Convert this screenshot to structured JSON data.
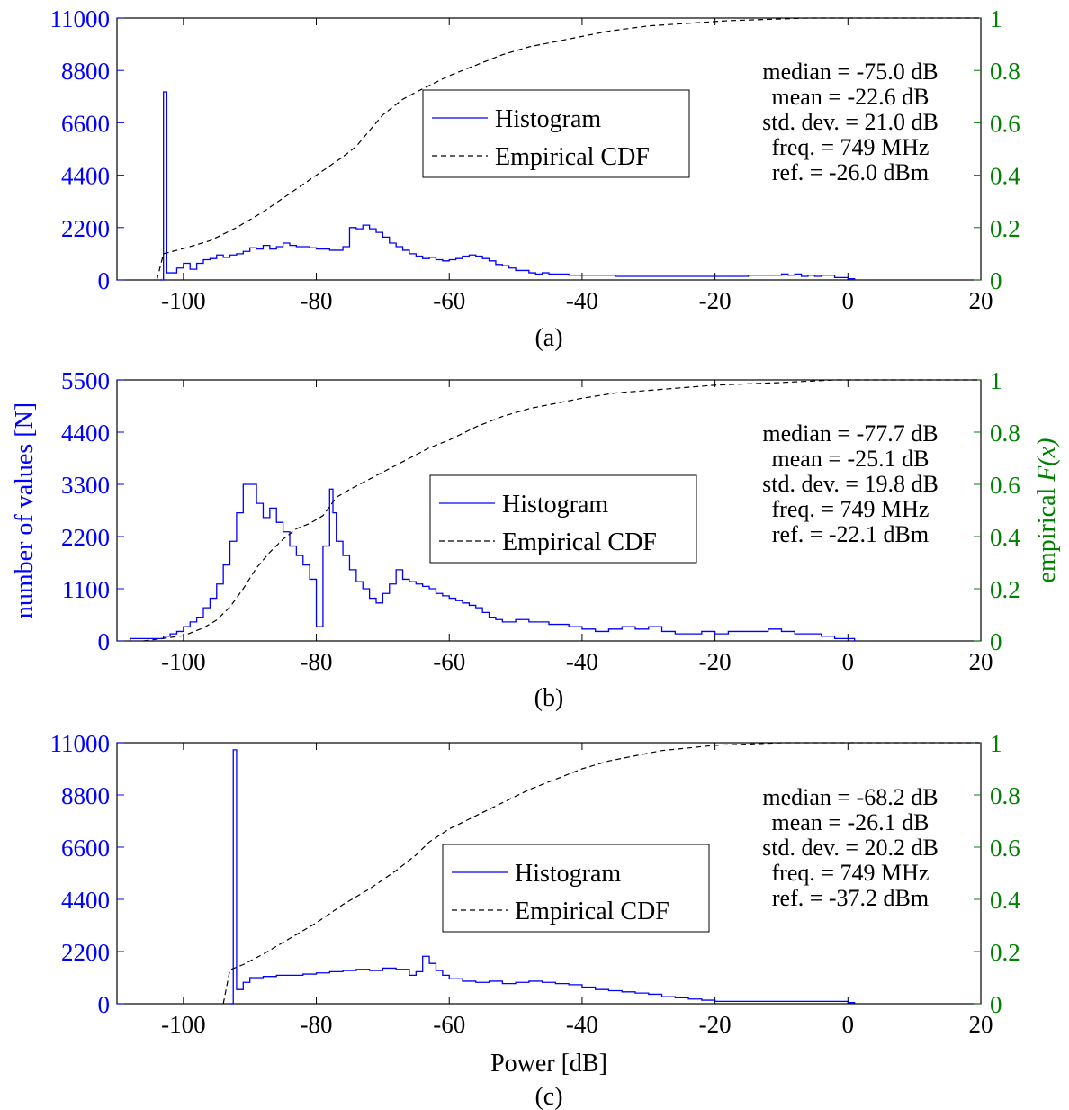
{
  "colors": {
    "histogram": "#0000ff",
    "cdf": "#000000",
    "left_axis": "#0000ff",
    "right_axis": "#008000"
  },
  "legend": {
    "histogram": "Histogram",
    "cdf": "Empirical CDF"
  },
  "left_axis_label": "number of values [N]",
  "right_axis_label": {
    "prefix": "empirical ",
    "italic": "F(x)"
  },
  "x_axis_label": "Power [dB]",
  "chart_data": [
    {
      "type": "line",
      "panel_label": "(a)",
      "xlim": [
        -110,
        20
      ],
      "ylim_left": [
        0,
        11000
      ],
      "ylim_right": [
        0,
        1
      ],
      "x_ticks": [
        -100,
        -80,
        -60,
        -40,
        -20,
        0,
        20
      ],
      "y_ticks_left": [
        0,
        2200,
        4400,
        6600,
        8800,
        11000
      ],
      "y_ticks_right": [
        0,
        0.2,
        0.4,
        0.6,
        0.8,
        1
      ],
      "stats": [
        "median = -75.0 dB",
        "mean = -22.6 dB",
        "std. dev. = 21.0 dB",
        "freq. = 749 MHz",
        "ref. = -26.0 dBm"
      ],
      "series": [
        {
          "name": "Histogram",
          "axis": "left",
          "step": true,
          "x": [
            -103.5,
            -103,
            -102.5,
            -101,
            -100,
            -99,
            -98,
            -97,
            -96,
            -95,
            -94,
            -93,
            -92,
            -91,
            -90,
            -89,
            -88,
            -87,
            -86,
            -85,
            -84,
            -83,
            -82,
            -81,
            -80,
            -79,
            -78,
            -77,
            -76,
            -75,
            -74,
            -73,
            -72,
            -71,
            -70,
            -69,
            -68,
            -67,
            -66,
            -65,
            -64,
            -63,
            -62,
            -61,
            -60,
            -59,
            -58,
            -57,
            -56,
            -55,
            -54,
            -53,
            -52,
            -51,
            -50,
            -49,
            -48,
            -47,
            -46,
            -45,
            -44,
            -42,
            -40,
            -35,
            -30,
            -25,
            -20,
            -15,
            -10,
            -9,
            -8,
            -7,
            -6,
            -5,
            -4,
            -2,
            0,
            1
          ],
          "y": [
            0,
            7900,
            300,
            500,
            700,
            450,
            700,
            850,
            900,
            1050,
            950,
            1050,
            1100,
            1200,
            1350,
            1300,
            1450,
            1300,
            1400,
            1550,
            1450,
            1400,
            1400,
            1350,
            1300,
            1300,
            1250,
            1250,
            1400,
            2200,
            2150,
            2300,
            2150,
            2000,
            1800,
            1550,
            1400,
            1250,
            1100,
            1000,
            900,
            950,
            850,
            800,
            850,
            900,
            1000,
            1050,
            1000,
            900,
            800,
            650,
            600,
            500,
            400,
            400,
            300,
            250,
            300,
            250,
            250,
            200,
            200,
            150,
            150,
            150,
            150,
            200,
            250,
            200,
            250,
            150,
            200,
            150,
            200,
            100,
            50,
            0
          ]
        },
        {
          "name": "Empirical CDF",
          "axis": "right",
          "dashed": true,
          "x": [
            -104,
            -103,
            -100,
            -96,
            -92,
            -88,
            -84,
            -80,
            -76,
            -74,
            -72,
            -70,
            -67,
            -64,
            -60,
            -56,
            -52,
            -48,
            -44,
            -40,
            -36,
            -30,
            -24,
            -18,
            -12,
            -6,
            0,
            20
          ],
          "y": [
            0,
            0.1,
            0.12,
            0.15,
            0.2,
            0.26,
            0.33,
            0.4,
            0.47,
            0.51,
            0.57,
            0.63,
            0.69,
            0.73,
            0.78,
            0.82,
            0.86,
            0.89,
            0.91,
            0.93,
            0.95,
            0.97,
            0.98,
            0.99,
            0.995,
            1.0,
            1.0,
            1.0
          ]
        }
      ]
    },
    {
      "type": "line",
      "panel_label": "(b)",
      "xlim": [
        -110,
        20
      ],
      "ylim_left": [
        0,
        5500
      ],
      "ylim_right": [
        0,
        1
      ],
      "x_ticks": [
        -100,
        -80,
        -60,
        -40,
        -20,
        0,
        20
      ],
      "y_ticks_left": [
        0,
        1100,
        2200,
        3300,
        4400,
        5500
      ],
      "y_ticks_right": [
        0,
        0.2,
        0.4,
        0.6,
        0.8,
        1
      ],
      "stats": [
        "median = -77.7 dB",
        "mean = -25.1 dB",
        "std. dev. = 19.8 dB",
        "freq. = 749 MHz",
        "ref. = -22.1 dBm"
      ],
      "series": [
        {
          "name": "Histogram",
          "axis": "left",
          "step": true,
          "x": [
            -108,
            -103,
            -102,
            -101,
            -100,
            -99,
            -98,
            -97,
            -96,
            -95,
            -94,
            -93,
            -92,
            -91,
            -89,
            -88,
            -87,
            -86,
            -85,
            -84,
            -83,
            -82,
            -81,
            -80,
            -79,
            -78,
            -77.5,
            -77,
            -76,
            -75,
            -74,
            -73,
            -72,
            -71,
            -70,
            -69,
            -68,
            -67,
            -66,
            -65,
            -64,
            -63,
            -62,
            -61,
            -60,
            -59,
            -58,
            -57,
            -56,
            -55,
            -54,
            -53,
            -52,
            -50,
            -48,
            -45,
            -42,
            -40,
            -38,
            -36,
            -34,
            -32,
            -30,
            -28,
            -26,
            -24,
            -22,
            -20,
            -18,
            -16,
            -14,
            -12,
            -10,
            -8,
            -6,
            -4,
            -2,
            1
          ],
          "y": [
            50,
            100,
            150,
            200,
            300,
            400,
            500,
            700,
            900,
            1200,
            1600,
            2100,
            2700,
            3300,
            2900,
            2600,
            2800,
            2500,
            2300,
            2000,
            1800,
            1600,
            1300,
            300,
            2000,
            3200,
            2700,
            2100,
            1800,
            1500,
            1250,
            1100,
            900,
            800,
            1000,
            1200,
            1500,
            1300,
            1250,
            1200,
            1150,
            1100,
            1000,
            950,
            900,
            850,
            800,
            750,
            700,
            600,
            500,
            450,
            400,
            450,
            400,
            350,
            300,
            250,
            200,
            250,
            300,
            250,
            300,
            200,
            150,
            150,
            200,
            150,
            200,
            200,
            200,
            250,
            200,
            150,
            150,
            100,
            50,
            0
          ]
        },
        {
          "name": "Empirical CDF",
          "axis": "right",
          "dashed": true,
          "x": [
            -106,
            -100,
            -97,
            -95,
            -93,
            -91,
            -89,
            -87,
            -85,
            -83,
            -81,
            -79,
            -77,
            -75,
            -72,
            -69,
            -66,
            -63,
            -60,
            -56,
            -52,
            -48,
            -44,
            -40,
            -35,
            -30,
            -20,
            -10,
            -2,
            0,
            20
          ],
          "y": [
            0,
            0.02,
            0.05,
            0.08,
            0.13,
            0.2,
            0.28,
            0.34,
            0.39,
            0.43,
            0.45,
            0.48,
            0.55,
            0.58,
            0.62,
            0.66,
            0.7,
            0.74,
            0.77,
            0.82,
            0.86,
            0.89,
            0.91,
            0.93,
            0.95,
            0.96,
            0.98,
            0.99,
            1.0,
            1.0,
            1.0
          ]
        }
      ]
    },
    {
      "type": "line",
      "panel_label": "(c)",
      "xlim": [
        -110,
        20
      ],
      "ylim_left": [
        0,
        11000
      ],
      "ylim_right": [
        0,
        1
      ],
      "x_ticks": [
        -100,
        -80,
        -60,
        -40,
        -20,
        0,
        20
      ],
      "y_ticks_left": [
        0,
        2200,
        4400,
        6600,
        8800,
        11000
      ],
      "y_ticks_right": [
        0,
        0.2,
        0.4,
        0.6,
        0.8,
        1
      ],
      "xlabel": "Power [dB]",
      "stats": [
        "median = -68.2 dB",
        "mean = -26.1 dB",
        "std. dev. = 20.2 dB",
        "freq. = 749 MHz",
        "ref. = -37.2 dBm"
      ],
      "series": [
        {
          "name": "Histogram",
          "axis": "left",
          "step": true,
          "x": [
            -93,
            -92.5,
            -92,
            -91,
            -90,
            -88,
            -86,
            -84,
            -82,
            -80,
            -78,
            -76,
            -74,
            -72,
            -70,
            -68,
            -66,
            -65,
            -64,
            -63,
            -62,
            -61,
            -60,
            -58,
            -56,
            -54,
            -52,
            -50,
            -48,
            -46,
            -44,
            -42,
            -40,
            -38,
            -36,
            -34,
            -32,
            -30,
            -28,
            -26,
            -24,
            -22,
            -20,
            -15,
            -10,
            -5,
            0,
            1
          ],
          "y": [
            0,
            10700,
            600,
            900,
            1100,
            1150,
            1200,
            1200,
            1250,
            1300,
            1350,
            1400,
            1450,
            1400,
            1500,
            1450,
            1200,
            1350,
            2000,
            1700,
            1400,
            1200,
            1050,
            950,
            900,
            950,
            850,
            900,
            950,
            900,
            850,
            800,
            700,
            600,
            550,
            500,
            450,
            400,
            300,
            250,
            200,
            150,
            100,
            100,
            100,
            100,
            50,
            0
          ]
        },
        {
          "name": "Empirical CDF",
          "axis": "right",
          "dashed": true,
          "x": [
            -94,
            -93,
            -91,
            -88,
            -84,
            -80,
            -76,
            -72,
            -68,
            -65,
            -63,
            -60,
            -56,
            -52,
            -48,
            -44,
            -40,
            -36,
            -32,
            -28,
            -24,
            -20,
            -15,
            -10,
            -5,
            0,
            20
          ],
          "y": [
            0,
            0.13,
            0.15,
            0.19,
            0.25,
            0.31,
            0.38,
            0.44,
            0.51,
            0.57,
            0.62,
            0.67,
            0.72,
            0.77,
            0.82,
            0.86,
            0.9,
            0.93,
            0.95,
            0.97,
            0.98,
            0.99,
            0.995,
            1.0,
            1.0,
            1.0,
            1.0
          ]
        }
      ]
    }
  ]
}
